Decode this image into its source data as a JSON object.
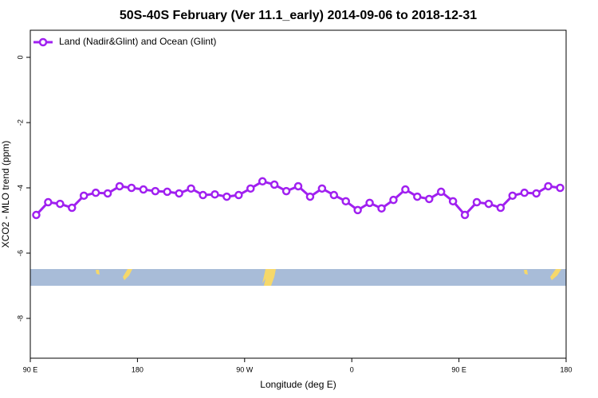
{
  "chart_data": {
    "type": "line",
    "title": "50S-40S February (Ver 11.1_early)   2014-09-06 to 2018-12-31",
    "x_label": "Longitude (deg E)",
    "y_label": "XCO2 - MLO trend (ppm)",
    "x": [
      95,
      105,
      115,
      125,
      135,
      145,
      155,
      165,
      175,
      185,
      195,
      205,
      215,
      225,
      235,
      245,
      255,
      265,
      275,
      285,
      295,
      305,
      315,
      325,
      335,
      345,
      355,
      365,
      375,
      385,
      395,
      405,
      415,
      425,
      435,
      445,
      455,
      465,
      475,
      485,
      495,
      505,
      515,
      525,
      535
    ],
    "series": [
      {
        "name": "Land (Nadir&Glint) and Ocean (Glint)",
        "color": "#a020f0",
        "values": [
          -4.83,
          -4.44,
          -4.49,
          -4.61,
          -4.24,
          -4.15,
          -4.17,
          -3.95,
          -4.0,
          -4.05,
          -4.1,
          -4.12,
          -4.17,
          -4.02,
          -4.22,
          -4.2,
          -4.27,
          -4.22,
          -4.02,
          -3.8,
          -3.9,
          -4.1,
          -3.95,
          -4.27,
          -4.02,
          -4.22,
          -4.41,
          -4.68,
          -4.46,
          -4.63,
          -4.37,
          -4.05,
          -4.27,
          -4.34,
          -4.12,
          -4.41,
          -4.83,
          -4.44,
          -4.49,
          -4.61,
          -4.24,
          -4.15,
          -4.17,
          -3.95,
          -4.0
        ]
      }
    ],
    "xlim": [
      90,
      540
    ],
    "xticks": [
      {
        "value": 90,
        "label": "90 E"
      },
      {
        "value": 180,
        "label": "180"
      },
      {
        "value": 270,
        "label": "90 W"
      },
      {
        "value": 360,
        "label": "0"
      },
      {
        "value": 450,
        "label": "90 E"
      },
      {
        "value": 540,
        "label": "180"
      }
    ],
    "ylim": [
      -9.22,
      0.83
    ],
    "yticks": [
      0,
      -2,
      -4,
      -6,
      -8
    ],
    "legend": "top-left"
  }
}
